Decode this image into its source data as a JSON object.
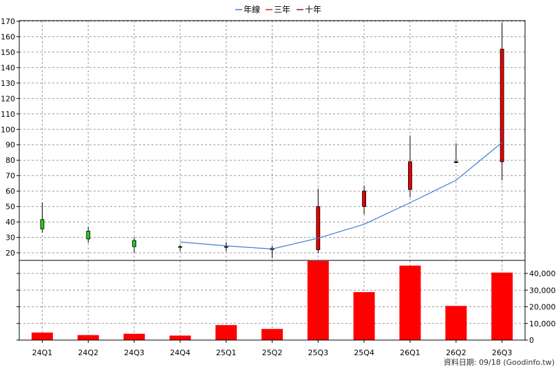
{
  "legend": [
    {
      "label": "年線",
      "color": "#3a7fd5"
    },
    {
      "label": "三年",
      "color": "#e0201b"
    },
    {
      "label": "十年",
      "color": "#b01010"
    }
  ],
  "footer": "資料日期: 09/18  (Goodinfo.tw)",
  "chart_data": [
    {
      "type": "candlestick",
      "title": "",
      "categories": [
        "24Q1",
        "24Q2",
        "24Q3",
        "24Q4",
        "25Q1",
        "25Q2",
        "25Q3",
        "25Q4",
        "26Q1",
        "26Q2",
        "26Q3"
      ],
      "ylim": [
        15,
        170
      ],
      "yticks": [
        20,
        30,
        40,
        50,
        60,
        70,
        80,
        90,
        100,
        110,
        120,
        130,
        140,
        150,
        160,
        170
      ],
      "grid": true,
      "up_color": "#e00000",
      "down_color": "#22cc22",
      "candles": [
        {
          "open": 41.5,
          "close": 35.5,
          "high": 52.5,
          "low": 33
        },
        {
          "open": 34,
          "close": 29,
          "high": 37,
          "low": 26.5
        },
        {
          "open": 28,
          "close": 24,
          "high": 30,
          "low": 20
        },
        {
          "open": 24,
          "close": 24,
          "high": 25,
          "low": 21
        },
        {
          "open": 24,
          "close": 24,
          "high": 27,
          "low": 21
        },
        {
          "open": 23,
          "close": 22,
          "high": 24.5,
          "low": 16.5
        },
        {
          "open": 22,
          "close": 50,
          "high": 61.5,
          "low": 20
        },
        {
          "open": 50,
          "close": 60,
          "high": 63.5,
          "low": 45
        },
        {
          "open": 61,
          "close": 79,
          "high": 96,
          "low": 56
        },
        {
          "open": 79,
          "close": 78.5,
          "high": 91,
          "low": 78
        },
        {
          "open": 79,
          "close": 152,
          "high": 169,
          "low": 67
        }
      ],
      "series": [
        {
          "name": "年線",
          "color": "#3a7fd5",
          "values": [
            null,
            null,
            null,
            27,
            24.5,
            22.5,
            29.5,
            38.5,
            52.5,
            67,
            91.5
          ]
        }
      ]
    },
    {
      "type": "bar",
      "categories": [
        "24Q1",
        "24Q2",
        "24Q3",
        "24Q4",
        "25Q1",
        "25Q2",
        "25Q3",
        "25Q4",
        "26Q1",
        "26Q2",
        "26Q3"
      ],
      "values": [
        4500,
        3000,
        3800,
        2700,
        9000,
        6700,
        47500,
        28800,
        44700,
        20500,
        40500
      ],
      "ylim": [
        0,
        48000
      ],
      "yticks": [
        0,
        10000,
        20000,
        30000,
        40000
      ],
      "ytick_labels": [
        "0",
        "10,000",
        "20,000",
        "30,000",
        "40,000"
      ],
      "color": "#ff0000",
      "grid": true
    }
  ]
}
